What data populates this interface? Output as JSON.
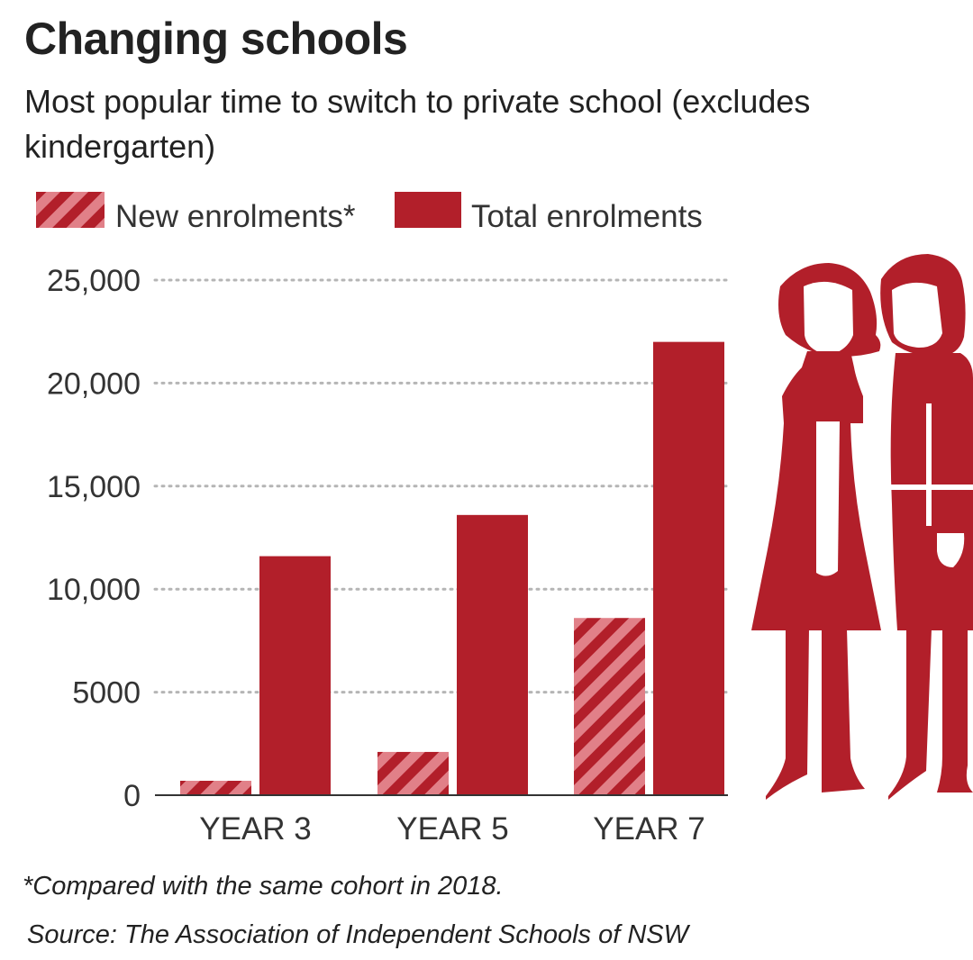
{
  "colors": {
    "bar": "#b21f2a",
    "stripe_light": "#e18088",
    "text": "#222222"
  },
  "chart_data": {
    "type": "bar",
    "title": "Changing schools",
    "subtitle": "Most popular time to switch to private school (excludes kindergarten)",
    "categories": [
      "YEAR 3",
      "YEAR 5",
      "YEAR 7"
    ],
    "series": [
      {
        "name": "New enrolments*",
        "pattern": "striped",
        "values": [
          700,
          2100,
          8600
        ]
      },
      {
        "name": "Total enrolments",
        "pattern": "solid",
        "values": [
          11600,
          13600,
          22000
        ]
      }
    ],
    "y_ticks": [
      0,
      5000,
      10000,
      15000,
      20000,
      25000
    ],
    "y_tick_labels": [
      "0",
      "5000",
      "10,000",
      "15,000",
      "20,000",
      "25,000"
    ],
    "ylim": [
      0,
      25000
    ],
    "grid": "dotted horizontal",
    "legend_position": "top-left",
    "xlabel": "",
    "ylabel": ""
  },
  "footnote": "*Compared with the same cohort in 2018.",
  "source": "Source: The Association of Independent Schools of NSW",
  "decoration": "two-schoolgirls-illustration"
}
